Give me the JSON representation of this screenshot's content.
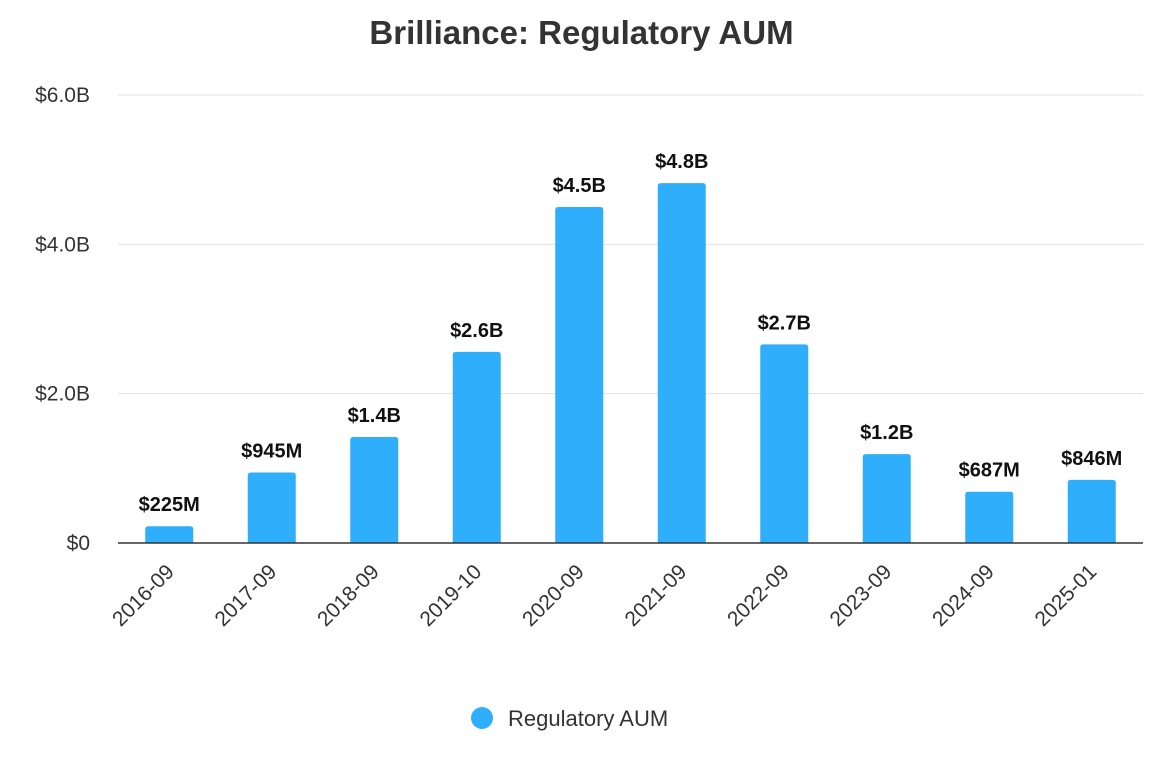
{
  "chart_data": {
    "type": "bar",
    "title": "Brilliance: Regulatory AUM",
    "xlabel": "",
    "ylabel": "",
    "categories": [
      "2016-09",
      "2017-09",
      "2018-09",
      "2019-10",
      "2020-09",
      "2021-09",
      "2022-09",
      "2023-09",
      "2024-09",
      "2025-01"
    ],
    "series": [
      {
        "name": "Regulatory AUM",
        "color": "#2eaefb",
        "values": [
          225000000,
          945000000,
          1420000000,
          2560000000,
          4500000000,
          4820000000,
          2660000000,
          1190000000,
          687000000,
          846000000
        ],
        "labels": [
          "$225M",
          "$945M",
          "$1.4B",
          "$2.6B",
          "$4.5B",
          "$4.8B",
          "$2.7B",
          "$1.2B",
          "$687M",
          "$846M"
        ]
      }
    ],
    "ylim": [
      0,
      6000000000
    ],
    "yticks": [
      0,
      2000000000,
      4000000000,
      6000000000
    ],
    "ytick_labels": [
      "$0",
      "$2.0B",
      "$4.0B",
      "$6.0B"
    ],
    "grid": true,
    "legend": "bottom-center"
  }
}
